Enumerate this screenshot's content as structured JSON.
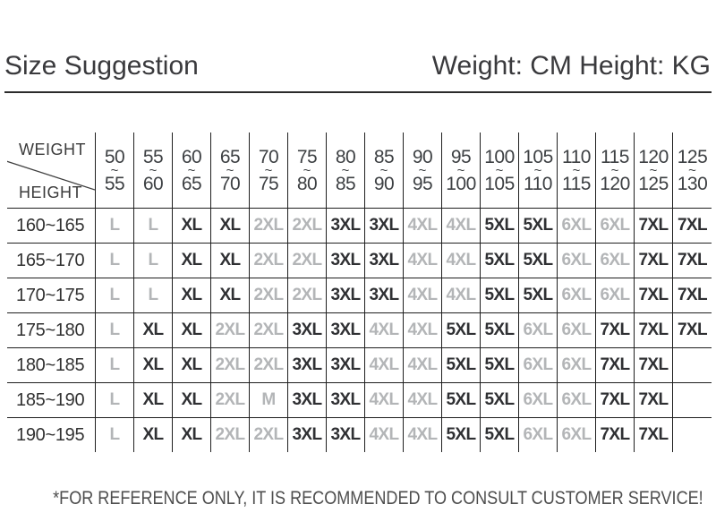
{
  "page": {
    "title": "Size Suggestion",
    "units_note": "Weight: CM Height: KG",
    "footnote": "*FOR REFERENCE ONLY, IT IS RECOMMENDED TO CONSULT CUSTOMER SERVICE!"
  },
  "colors": {
    "dark_text": "#2f3033",
    "gray_text": "#b3b5b7",
    "border": "#1f1f1f",
    "title_text": "#3a3a3d",
    "footnote_text": "#4e4e4e"
  },
  "chart_data": {
    "type": "table",
    "title": "Size Suggestion",
    "units_note": "Weight: CM Height: KG",
    "corner_top_label": "WEIGHT",
    "corner_bottom_label": "HEIGHT",
    "weight_columns": [
      [
        "50",
        "55"
      ],
      [
        "55",
        "60"
      ],
      [
        "60",
        "65"
      ],
      [
        "65",
        "70"
      ],
      [
        "70",
        "75"
      ],
      [
        "75",
        "80"
      ],
      [
        "80",
        "85"
      ],
      [
        "85",
        "90"
      ],
      [
        "90",
        "95"
      ],
      [
        "95",
        "100"
      ],
      [
        "100",
        "105"
      ],
      [
        "105",
        "110"
      ],
      [
        "110",
        "115"
      ],
      [
        "115",
        "120"
      ],
      [
        "120",
        "125"
      ],
      [
        "125",
        "130"
      ]
    ],
    "rows": [
      {
        "height_range": "160~165",
        "sizes": [
          "L",
          "L",
          "XL",
          "XL",
          "2XL",
          "2XL",
          "3XL",
          "3XL",
          "4XL",
          "4XL",
          "5XL",
          "5XL",
          "6XL",
          "6XL",
          "7XL",
          "7XL"
        ],
        "tones": [
          "gray",
          "gray",
          "dark",
          "dark",
          "gray",
          "gray",
          "dark",
          "dark",
          "gray",
          "gray",
          "dark",
          "dark",
          "gray",
          "gray",
          "dark",
          "dark"
        ]
      },
      {
        "height_range": "165~170",
        "sizes": [
          "L",
          "L",
          "XL",
          "XL",
          "2XL",
          "2XL",
          "3XL",
          "3XL",
          "4XL",
          "4XL",
          "5XL",
          "5XL",
          "6XL",
          "6XL",
          "7XL",
          "7XL"
        ],
        "tones": [
          "gray",
          "gray",
          "dark",
          "dark",
          "gray",
          "gray",
          "dark",
          "dark",
          "gray",
          "gray",
          "dark",
          "dark",
          "gray",
          "gray",
          "dark",
          "dark"
        ]
      },
      {
        "height_range": "170~175",
        "sizes": [
          "L",
          "L",
          "XL",
          "XL",
          "2XL",
          "2XL",
          "3XL",
          "3XL",
          "4XL",
          "4XL",
          "5XL",
          "5XL",
          "6XL",
          "6XL",
          "7XL",
          "7XL"
        ],
        "tones": [
          "gray",
          "gray",
          "dark",
          "dark",
          "gray",
          "gray",
          "dark",
          "dark",
          "gray",
          "gray",
          "dark",
          "dark",
          "gray",
          "gray",
          "dark",
          "dark"
        ]
      },
      {
        "height_range": "175~180",
        "sizes": [
          "L",
          "XL",
          "XL",
          "2XL",
          "2XL",
          "3XL",
          "3XL",
          "4XL",
          "4XL",
          "5XL",
          "5XL",
          "6XL",
          "6XL",
          "7XL",
          "7XL",
          "7XL"
        ],
        "tones": [
          "gray",
          "dark",
          "dark",
          "gray",
          "gray",
          "dark",
          "dark",
          "gray",
          "gray",
          "dark",
          "dark",
          "gray",
          "gray",
          "dark",
          "dark",
          "dark"
        ]
      },
      {
        "height_range": "180~185",
        "sizes": [
          "L",
          "XL",
          "XL",
          "2XL",
          "2XL",
          "3XL",
          "3XL",
          "4XL",
          "4XL",
          "5XL",
          "5XL",
          "6XL",
          "6XL",
          "7XL",
          "7XL",
          ""
        ],
        "tones": [
          "gray",
          "dark",
          "dark",
          "gray",
          "gray",
          "dark",
          "dark",
          "gray",
          "gray",
          "dark",
          "dark",
          "gray",
          "gray",
          "dark",
          "dark",
          "none"
        ]
      },
      {
        "height_range": "185~190",
        "sizes": [
          "L",
          "XL",
          "XL",
          "2XL",
          "M",
          "3XL",
          "3XL",
          "4XL",
          "4XL",
          "5XL",
          "5XL",
          "6XL",
          "6XL",
          "7XL",
          "7XL",
          ""
        ],
        "tones": [
          "gray",
          "dark",
          "dark",
          "gray",
          "gray",
          "dark",
          "dark",
          "gray",
          "gray",
          "dark",
          "dark",
          "gray",
          "gray",
          "dark",
          "dark",
          "none"
        ]
      },
      {
        "height_range": "190~195",
        "sizes": [
          "L",
          "XL",
          "XL",
          "2XL",
          "2XL",
          "3XL",
          "3XL",
          "4XL",
          "4XL",
          "5XL",
          "5XL",
          "6XL",
          "6XL",
          "7XL",
          "7XL",
          ""
        ],
        "tones": [
          "gray",
          "dark",
          "dark",
          "gray",
          "gray",
          "dark",
          "dark",
          "gray",
          "gray",
          "dark",
          "dark",
          "gray",
          "gray",
          "dark",
          "dark",
          "none"
        ]
      }
    ],
    "footnote": "*FOR REFERENCE ONLY, IT IS RECOMMENDED TO CONSULT CUSTOMER SERVICE!"
  }
}
